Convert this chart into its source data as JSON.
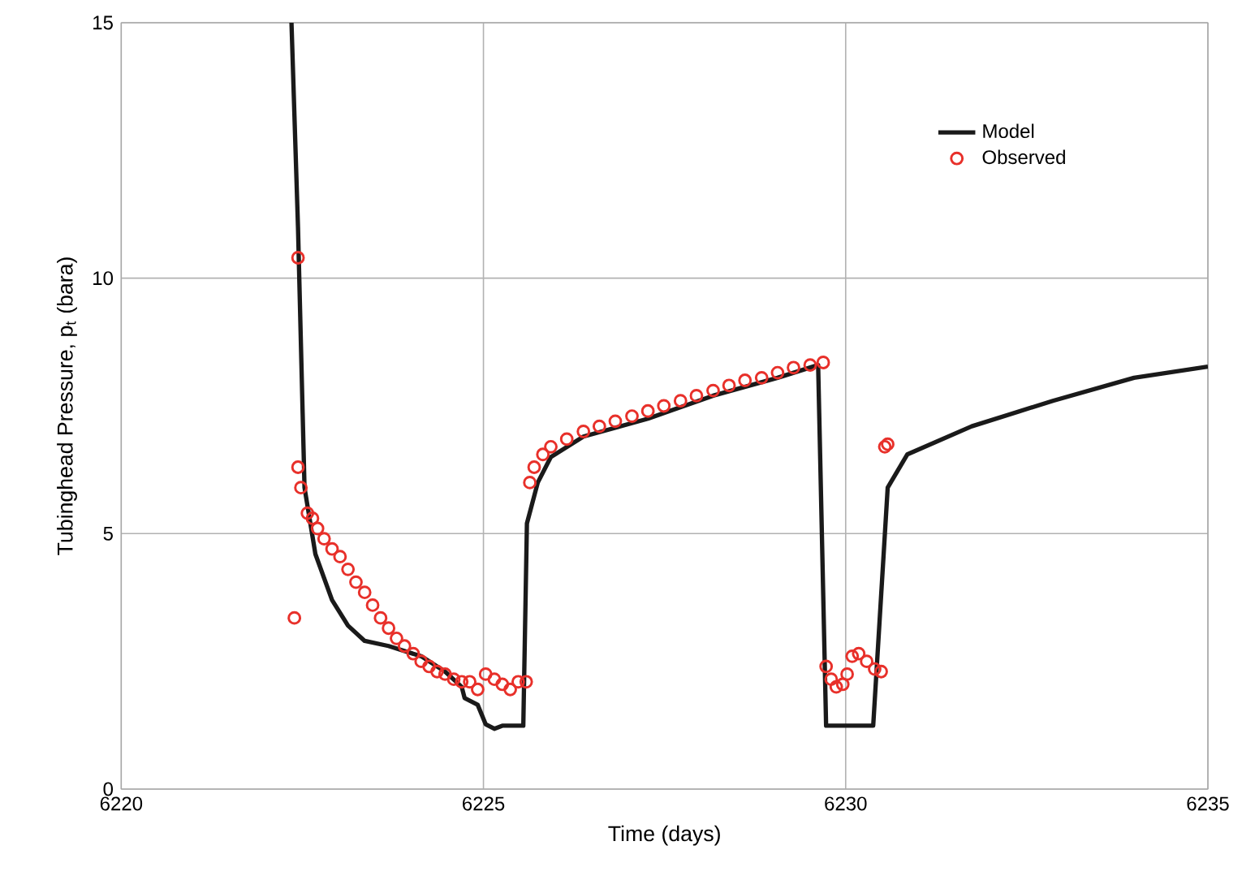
{
  "chart_data": {
    "type": "line",
    "xlabel": "Time (days)",
    "ylabel": "Tubinghead Pressure, p$_{t}$ (bara)",
    "xlim": [
      6220,
      6235
    ],
    "ylim": [
      0,
      15
    ],
    "xticks": [
      6220,
      6225,
      6230,
      6235
    ],
    "yticks": [
      0,
      5,
      10,
      15
    ],
    "grid": true,
    "legend": "top right",
    "series": [
      {
        "name": "Model",
        "color": "#1a1a1a",
        "marker": "none",
        "x": [
          6222.35,
          6222.44,
          6222.53,
          6222.68,
          6222.91,
          6223.13,
          6223.36,
          6223.69,
          6224.14,
          6224.47,
          6224.7,
          6224.74,
          6224.92,
          6225.03,
          6225.15,
          6225.26,
          6225.55,
          6225.6,
          6225.75,
          6225.93,
          6226.38,
          6227.27,
          6228.17,
          6229.06,
          6229.62,
          6229.73,
          6230.38,
          6230.58,
          6230.85,
          6231.74,
          6232.86,
          6233.98,
          6235
        ],
        "values": [
          15,
          11.0,
          5.9,
          4.6,
          3.7,
          3.2,
          2.9,
          2.8,
          2.6,
          2.3,
          2.0,
          1.78,
          1.65,
          1.27,
          1.18,
          1.24,
          1.24,
          5.2,
          6.0,
          6.5,
          6.9,
          7.25,
          7.7,
          8.05,
          8.3,
          1.24,
          1.24,
          5.9,
          6.55,
          7.1,
          7.6,
          8.05,
          8.27
        ]
      },
      {
        "name": "Observed",
        "type": "scatter",
        "color": "#e8302a",
        "marker": "circle",
        "x": [
          6222.39,
          6222.44,
          6222.44,
          6222.48,
          6222.57,
          6222.64,
          6222.71,
          6222.8,
          6222.91,
          6223.02,
          6223.13,
          6223.24,
          6223.36,
          6223.47,
          6223.58,
          6223.69,
          6223.8,
          6223.91,
          6224.03,
          6224.14,
          6224.25,
          6224.36,
          6224.47,
          6224.59,
          6224.7,
          6224.81,
          6224.92,
          6225.03,
          6225.15,
          6225.26,
          6225.37,
          6225.48,
          6225.59,
          6225.64,
          6225.7,
          6225.82,
          6225.93,
          6226.15,
          6226.38,
          6226.6,
          6226.82,
          6227.05,
          6227.27,
          6227.49,
          6227.72,
          6227.94,
          6228.17,
          6228.39,
          6228.61,
          6228.84,
          6229.06,
          6229.28,
          6229.51,
          6229.69,
          6229.73,
          6229.8,
          6229.87,
          6229.96,
          6230.02,
          6230.09,
          6230.18,
          6230.29,
          6230.4,
          6230.49,
          6230.54,
          6230.58
        ],
        "values": [
          3.35,
          10.4,
          6.3,
          5.9,
          5.4,
          5.3,
          5.1,
          4.9,
          4.7,
          4.55,
          4.3,
          4.05,
          3.85,
          3.6,
          3.35,
          3.15,
          2.95,
          2.8,
          2.65,
          2.5,
          2.4,
          2.3,
          2.25,
          2.15,
          2.1,
          2.1,
          1.95,
          2.25,
          2.15,
          2.05,
          1.95,
          2.1,
          2.1,
          6.0,
          6.3,
          6.55,
          6.7,
          6.85,
          7.0,
          7.1,
          7.2,
          7.3,
          7.4,
          7.5,
          7.6,
          7.7,
          7.8,
          7.9,
          8.0,
          8.05,
          8.15,
          8.25,
          8.3,
          8.35,
          2.4,
          2.15,
          2.0,
          2.05,
          2.25,
          2.6,
          2.65,
          2.5,
          2.35,
          2.3,
          6.7,
          6.75
        ]
      }
    ]
  }
}
